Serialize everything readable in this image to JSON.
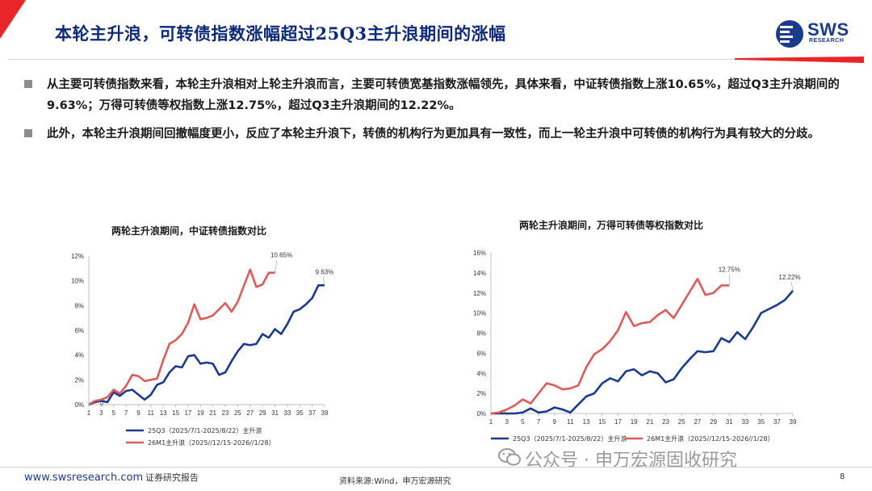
{
  "header": {
    "title": "本轮主升浪，可转债指数涨幅超过25Q3主升浪期间的涨幅",
    "logo_text": "SWS",
    "logo_sub": "RESEARCH"
  },
  "colors": {
    "navy": "#1a3a8f",
    "red": "#e05a5a",
    "brand_red": "#e8262a"
  },
  "bullets": [
    "从主要可转债指数来看，本轮主升浪相对上轮主升浪而言，主要可转债宽基指数涨幅领先，具体来看，中证转债指数上涨10.65%，超过Q3主升浪期间的9.63%；万得可转债等权指数上涨12.75%，超过Q3主升浪期间的12.22%。",
    "此外，本轮主升浪期间回撤幅度更小，反应了本轮主升浪下，转债的机构行为更加具有一致性，而上一轮主升浪中可转债的机构行为具有较大的分歧。"
  ],
  "footer": {
    "url": "www.swsresearch.com",
    "type": "证券研究报告",
    "source": "资料来源:Wind，申万宏源研究",
    "page": "8",
    "watermark": "公众号 · 申万宏源固收研究"
  },
  "chart_data": [
    {
      "type": "line",
      "title": "两轮主升浪期间，中证转债指数对比",
      "xticks": [
        "1",
        "3",
        "5",
        "7",
        "9",
        "11",
        "13",
        "15",
        "17",
        "19",
        "21",
        "23",
        "25",
        "27",
        "29",
        "31",
        "33",
        "35",
        "37",
        "39"
      ],
      "yticks": [
        "0%",
        "2%",
        "4%",
        "6%",
        "8%",
        "10%",
        "12%"
      ],
      "ylim": [
        0,
        12
      ],
      "xlim": [
        1,
        39
      ],
      "series": [
        {
          "name": "25Q3（2025/7/1-2025/8/22）主升浪",
          "color": "#1a3a8f",
          "x": [
            1,
            2,
            3,
            4,
            5,
            6,
            7,
            8,
            9,
            10,
            11,
            12,
            13,
            14,
            15,
            16,
            17,
            18,
            19,
            20,
            21,
            22,
            23,
            24,
            25,
            26,
            27,
            28,
            29,
            30,
            31,
            32,
            33,
            34,
            35,
            36,
            37,
            38,
            39
          ],
          "values": [
            0,
            0.2,
            0.3,
            0.2,
            1.0,
            0.7,
            1.1,
            1.2,
            0.8,
            0.4,
            0.8,
            1.6,
            1.8,
            2.6,
            3.1,
            3.0,
            3.9,
            4.0,
            3.3,
            3.4,
            3.3,
            2.4,
            2.6,
            3.5,
            4.3,
            4.9,
            4.8,
            4.9,
            5.7,
            5.4,
            6.1,
            5.7,
            6.5,
            7.5,
            7.7,
            8.1,
            8.6,
            9.63,
            9.63
          ]
        },
        {
          "name": "26M1主升浪（2025//12/15-2026//1/28）",
          "color": "#e05a5a",
          "x": [
            1,
            2,
            3,
            4,
            5,
            6,
            7,
            8,
            9,
            10,
            11,
            12,
            13,
            14,
            15,
            16,
            17,
            18,
            19,
            20,
            21,
            22,
            23,
            24,
            25,
            26,
            27,
            28,
            29,
            30,
            31
          ],
          "values": [
            0,
            0.3,
            0.4,
            0.6,
            1.2,
            0.9,
            1.5,
            2.4,
            2.3,
            1.9,
            2.0,
            2.1,
            3.6,
            4.9,
            5.2,
            5.7,
            6.6,
            8.1,
            6.9,
            7.0,
            7.2,
            7.7,
            8.2,
            7.5,
            8.3,
            9.6,
            10.9,
            9.5,
            9.7,
            10.65,
            10.65
          ]
        }
      ],
      "annotations": [
        "10.65%",
        "9.63%"
      ],
      "zero_label": "0"
    },
    {
      "type": "line",
      "title": "两轮主升浪期间，万得可转债等权指数对比",
      "xticks": [
        "1",
        "3",
        "5",
        "7",
        "9",
        "11",
        "13",
        "15",
        "17",
        "19",
        "21",
        "23",
        "25",
        "27",
        "29",
        "31",
        "33",
        "35",
        "37",
        "39"
      ],
      "yticks": [
        "0%",
        "2%",
        "4%",
        "6%",
        "8%",
        "10%",
        "12%",
        "14%",
        "16%"
      ],
      "ylim": [
        0,
        16
      ],
      "xlim": [
        1,
        39
      ],
      "series": [
        {
          "name": "25Q3（2025/7/1-2025/8/22）主升浪",
          "color": "#1a3a8f",
          "x": [
            1,
            2,
            3,
            4,
            5,
            6,
            7,
            8,
            9,
            10,
            11,
            12,
            13,
            14,
            15,
            16,
            17,
            18,
            19,
            20,
            21,
            22,
            23,
            24,
            25,
            26,
            27,
            28,
            29,
            30,
            31,
            32,
            33,
            34,
            35,
            36,
            37,
            38,
            39
          ],
          "values": [
            0,
            0,
            0,
            0,
            0.1,
            0.5,
            0.1,
            0.2,
            0.6,
            0.4,
            0.1,
            0.9,
            1.7,
            2.0,
            3.0,
            3.5,
            3.2,
            4.2,
            4.4,
            3.8,
            4.2,
            4.0,
            3.1,
            3.4,
            4.5,
            5.4,
            6.2,
            6.1,
            6.2,
            7.5,
            7.1,
            8.1,
            7.4,
            8.6,
            10.0,
            10.4,
            10.8,
            11.3,
            12.22
          ]
        },
        {
          "name": "26M1主升浪（2025//12/15-2026//1/28）",
          "color": "#e05a5a",
          "x": [
            1,
            2,
            3,
            4,
            5,
            6,
            7,
            8,
            9,
            10,
            11,
            12,
            13,
            14,
            15,
            16,
            17,
            18,
            19,
            20,
            21,
            22,
            23,
            24,
            25,
            26,
            27,
            28,
            29,
            30,
            31
          ],
          "values": [
            0,
            0.1,
            0.4,
            0.8,
            1.4,
            1.0,
            2.0,
            3.0,
            2.8,
            2.4,
            2.5,
            2.8,
            4.6,
            5.9,
            6.4,
            7.2,
            8.3,
            10.1,
            8.7,
            9.0,
            9.1,
            9.8,
            10.3,
            9.5,
            10.8,
            12.1,
            13.4,
            11.8,
            12.0,
            12.75,
            12.75
          ]
        }
      ],
      "annotations": [
        "12.75%",
        "12.22%"
      ],
      "zero_label": "0"
    }
  ]
}
